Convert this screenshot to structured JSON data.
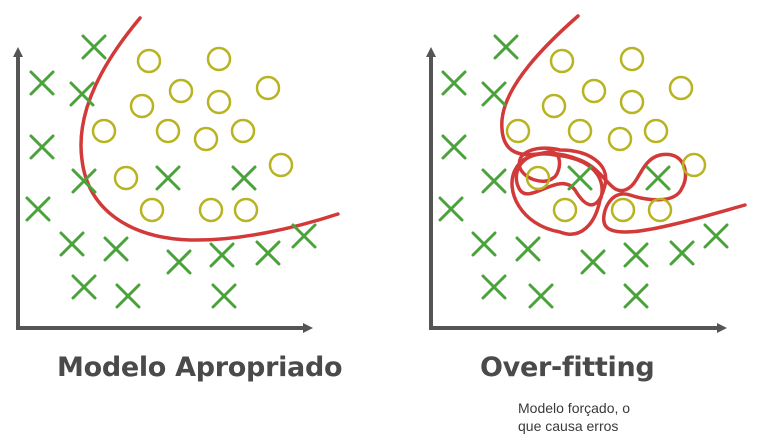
{
  "panels": [
    {
      "title": "Modelo Apropriado",
      "x_marks": [
        [
          94,
          47
        ],
        [
          42,
          83
        ],
        [
          82,
          94
        ],
        [
          42,
          147
        ],
        [
          84,
          181
        ],
        [
          168,
          178
        ],
        [
          244,
          178
        ],
        [
          38,
          209
        ],
        [
          72,
          244
        ],
        [
          116,
          249
        ],
        [
          179,
          262
        ],
        [
          222,
          255
        ],
        [
          268,
          253
        ],
        [
          304,
          236
        ],
        [
          84,
          287
        ],
        [
          128,
          296
        ],
        [
          224,
          296
        ]
      ],
      "circle_marks": [
        [
          149,
          61
        ],
        [
          219,
          59
        ],
        [
          181,
          91
        ],
        [
          219,
          102
        ],
        [
          268,
          88
        ],
        [
          142,
          106
        ],
        [
          104,
          131
        ],
        [
          168,
          131
        ],
        [
          206,
          139
        ],
        [
          243,
          131
        ],
        [
          126,
          178
        ],
        [
          281,
          165
        ],
        [
          152,
          210
        ],
        [
          211,
          210
        ],
        [
          246,
          210
        ]
      ]
    },
    {
      "title": "Over-fitting",
      "caption_line1": "Modelo forçado, o",
      "caption_line2": "que causa erros",
      "x_marks": [
        [
          506,
          47
        ],
        [
          454,
          83
        ],
        [
          494,
          94
        ],
        [
          454,
          147
        ],
        [
          494,
          181
        ],
        [
          580,
          178
        ],
        [
          658,
          178
        ],
        [
          451,
          209
        ],
        [
          484,
          244
        ],
        [
          528,
          249
        ],
        [
          593,
          262
        ],
        [
          636,
          255
        ],
        [
          682,
          253
        ],
        [
          716,
          236
        ],
        [
          494,
          287
        ],
        [
          541,
          296
        ],
        [
          636,
          296
        ]
      ],
      "circle_marks": [
        [
          562,
          61
        ],
        [
          632,
          59
        ],
        [
          594,
          91
        ],
        [
          632,
          102
        ],
        [
          681,
          88
        ],
        [
          554,
          106
        ],
        [
          518,
          131
        ],
        [
          580,
          131
        ],
        [
          620,
          139
        ],
        [
          656,
          131
        ],
        [
          538,
          178
        ],
        [
          694,
          165
        ],
        [
          565,
          210
        ],
        [
          623,
          210
        ],
        [
          660,
          210
        ]
      ]
    }
  ],
  "colors": {
    "x_mark": "#4aa33a",
    "circle_mark": "#b8b321",
    "boundary": "#d23a3a",
    "axis": "#555555"
  }
}
